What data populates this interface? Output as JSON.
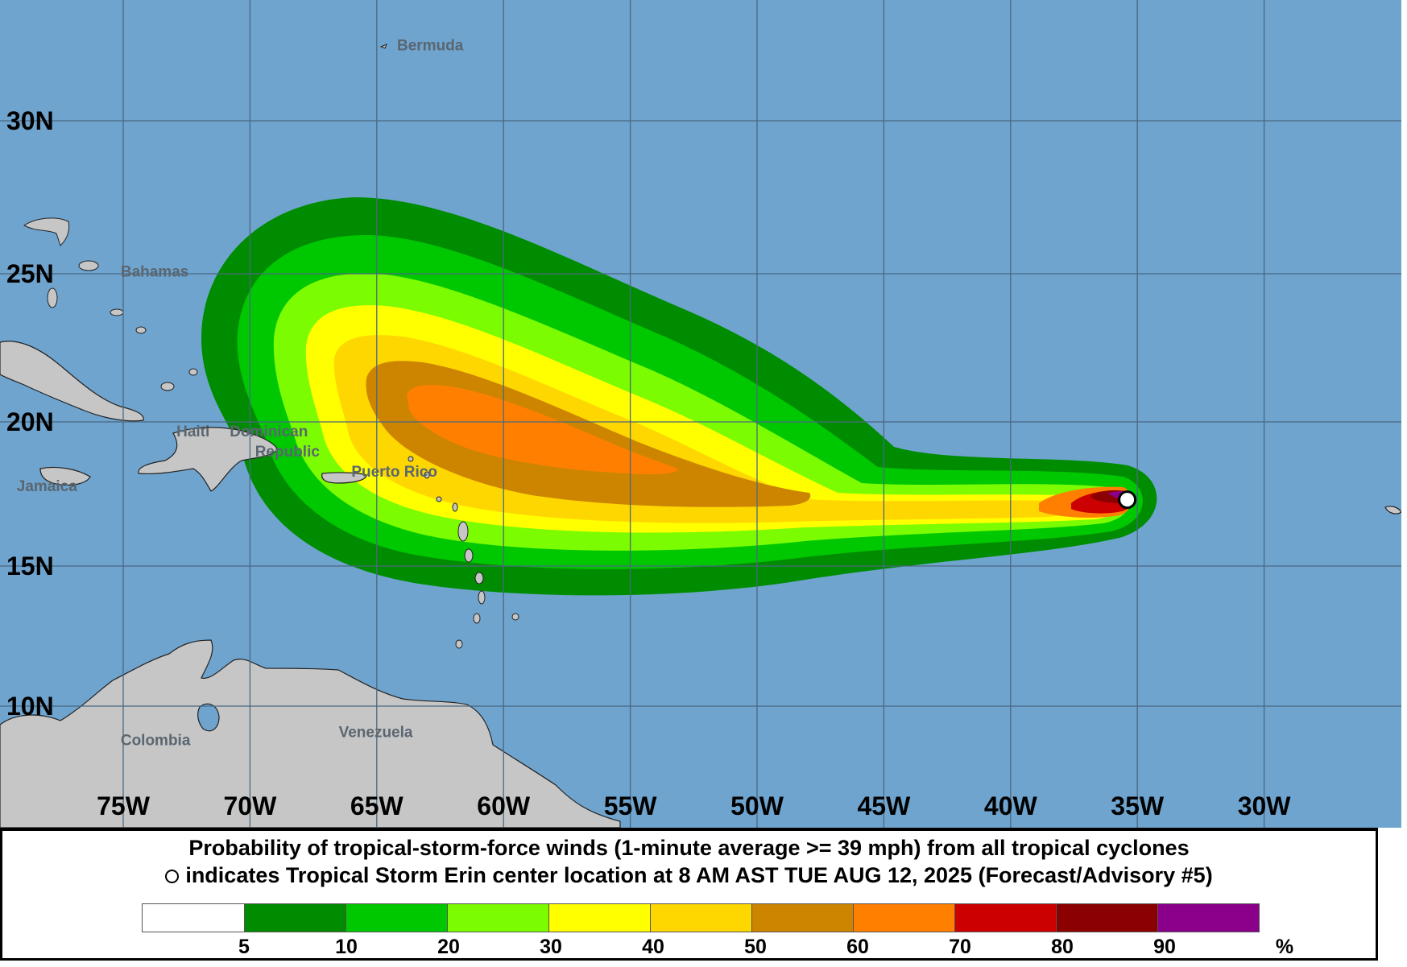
{
  "map": {
    "lat_labels": [
      {
        "lat": 30,
        "label": "30N"
      },
      {
        "lat": 25,
        "label": "25N"
      },
      {
        "lat": 20,
        "label": "20N"
      },
      {
        "lat": 15,
        "label": "15N"
      },
      {
        "lat": 10,
        "label": "10N"
      }
    ],
    "lon_labels": [
      {
        "lon": -75,
        "label": "75W"
      },
      {
        "lon": -70,
        "label": "70W"
      },
      {
        "lon": -65,
        "label": "65W"
      },
      {
        "lon": -60,
        "label": "60W"
      },
      {
        "lon": -55,
        "label": "55W"
      },
      {
        "lon": -50,
        "label": "50W"
      },
      {
        "lon": -45,
        "label": "45W"
      },
      {
        "lon": -40,
        "label": "40W"
      },
      {
        "lon": -35,
        "label": "35W"
      },
      {
        "lon": -30,
        "label": "30W"
      }
    ],
    "place_labels": [
      {
        "name": "Bermuda",
        "lat": 32.3,
        "lon": -64.2
      },
      {
        "name": "Bahamas",
        "lat": 24.9,
        "lon": -75.1
      },
      {
        "name": "Jamaica",
        "lat": 17.6,
        "lon": -79.2
      },
      {
        "name": "Haiti",
        "lat": 19.5,
        "lon": -72.9
      },
      {
        "name": "Dominican",
        "lat": 19.5,
        "lon": -70.8
      },
      {
        "name": "Republic",
        "lat": 18.8,
        "lon": -69.8
      },
      {
        "name": "Puerto Rico",
        "lat": 18.1,
        "lon": -66.0
      },
      {
        "name": "Colombia",
        "lat": 8.6,
        "lon": -75.1
      },
      {
        "name": "Venezuela",
        "lat": 8.9,
        "lon": -66.5
      }
    ],
    "storm_center": {
      "name": "Tropical Storm Erin",
      "lat": 17.3,
      "lon": -35.4
    },
    "colors": {
      "ocean": "#6fa4cf",
      "land": "#c6c6c6",
      "grid": "#4a6880",
      "coast": "#222222"
    }
  },
  "caption": {
    "line1": "Probability of tropical-storm-force winds (1-minute average >= 39 mph) from all tropical cyclones",
    "line2": "indicates Tropical Storm Erin center location at 8 AM AST TUE AUG 12, 2025 (Forecast/Advisory #5)"
  },
  "legend": {
    "colors": [
      "#ffffff",
      "#008c00",
      "#00c800",
      "#7cfc00",
      "#ffff00",
      "#ffd700",
      "#cd8500",
      "#ff8000",
      "#cc0000",
      "#8b0000",
      "#8b008b"
    ],
    "ticks": [
      "5",
      "10",
      "20",
      "30",
      "40",
      "50",
      "60",
      "70",
      "80",
      "90",
      "%"
    ]
  }
}
